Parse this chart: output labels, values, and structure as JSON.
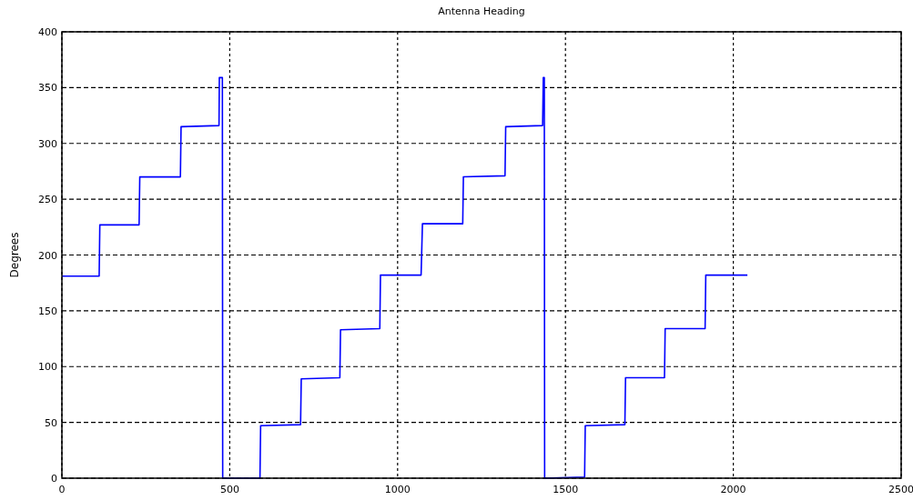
{
  "chart_data": {
    "type": "line",
    "title": "Antenna Heading",
    "ylabel": "Degrees",
    "xlim": [
      0,
      2500
    ],
    "xticks": [
      0,
      500,
      1000,
      1500,
      2000,
      2500
    ],
    "ylim": [
      0,
      400
    ],
    "yticks": [
      0,
      50,
      100,
      150,
      200,
      250,
      300,
      350,
      400
    ],
    "grid": true,
    "marker": "none",
    "line_style": "solid",
    "series": [
      {
        "color": "#0000ff",
        "x": [
          0,
          111,
          113,
          230,
          232,
          353,
          355,
          468,
          469,
          478,
          479,
          590,
          592,
          711,
          713,
          828,
          830,
          947,
          949,
          1070,
          1074,
          1194,
          1196,
          1320,
          1322,
          1432,
          1434,
          1437,
          1438,
          1557,
          1559,
          1677,
          1679,
          1795,
          1797,
          1916,
          1918,
          2042
        ],
        "values": [
          181,
          181,
          227,
          227,
          270,
          270,
          315,
          316,
          359,
          359,
          0,
          0,
          47,
          48,
          89,
          90,
          133,
          134,
          182,
          182,
          228,
          228,
          270,
          271,
          315,
          316,
          359,
          359,
          0,
          1,
          47,
          48,
          90,
          90,
          134,
          134,
          182,
          182
        ]
      }
    ]
  }
}
